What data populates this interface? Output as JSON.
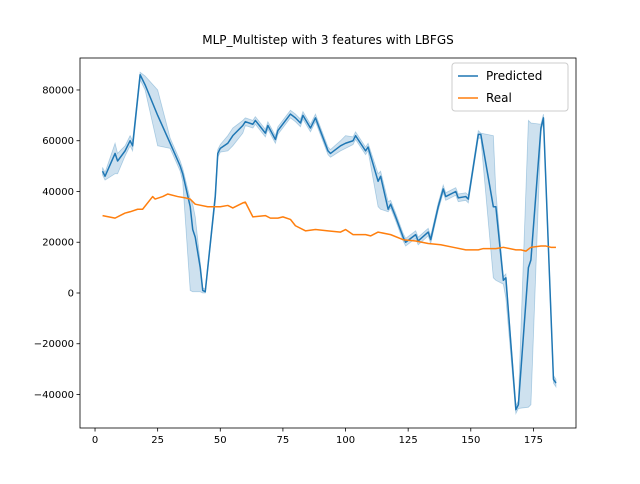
{
  "chart_data": {
    "type": "line",
    "title": "MLP_Multistep with 3 features with LBFGS",
    "xlim": [
      -6,
      192
    ],
    "xticks": [
      0,
      25,
      50,
      75,
      100,
      125,
      150,
      175
    ],
    "ylim": [
      -53200,
      92600
    ],
    "yticks": [
      {
        "value": -40000,
        "label": "−40000"
      },
      {
        "value": -20000,
        "label": "−20000"
      },
      0,
      20000,
      40000,
      60000,
      80000
    ],
    "legend": "upper right",
    "series": [
      {
        "name": "Predicted",
        "color": "#1f77b4",
        "x": [
          3,
          4,
          8,
          9,
          12,
          14,
          15,
          18,
          20,
          25,
          30,
          34,
          35,
          38,
          39,
          40,
          42,
          43,
          44,
          48,
          49,
          50,
          53,
          55,
          59,
          60,
          63,
          64,
          66,
          68,
          69,
          72,
          73,
          78,
          80,
          82,
          83,
          86,
          88,
          93,
          94,
          98,
          100,
          103,
          104,
          108,
          109,
          113,
          114,
          117,
          118,
          120,
          123,
          124,
          128,
          129,
          133,
          134,
          137,
          139,
          140,
          144,
          145,
          148,
          149,
          153,
          154,
          159,
          160,
          163,
          164,
          168,
          169,
          173,
          174,
          178,
          179,
          183,
          184
        ],
        "values": [
          48000,
          46000,
          55000,
          52000,
          56000,
          60000,
          58000,
          86000,
          82000,
          70000,
          59000,
          50000,
          47000,
          34000,
          25000,
          22000,
          10000,
          1000,
          500,
          38000,
          55000,
          57000,
          59000,
          62000,
          66000,
          67500,
          66500,
          68000,
          65500,
          63000,
          66000,
          60500,
          64000,
          70500,
          69000,
          67000,
          70000,
          65000,
          69000,
          56000,
          55000,
          58000,
          59000,
          60000,
          62000,
          56000,
          57500,
          44000,
          46000,
          33000,
          35000,
          30000,
          22000,
          20000,
          23000,
          20500,
          24000,
          21000,
          34000,
          41000,
          38000,
          40000,
          37500,
          38000,
          37000,
          62500,
          62500,
          34000,
          34000,
          5000,
          6000,
          -46000,
          -44000,
          10000,
          13000,
          65000,
          69000,
          -34000,
          -35500
        ],
        "band": {
          "lower": [
            46500,
            44500,
            47000,
            47000,
            54000,
            58000,
            56000,
            84000,
            80000,
            58000,
            57000,
            48000,
            44000,
            1000,
            500,
            500,
            500,
            0,
            0,
            36000,
            53500,
            55500,
            56000,
            58000,
            63000,
            66000,
            65000,
            66500,
            64000,
            61500,
            64500,
            59000,
            62500,
            69000,
            67500,
            65500,
            68500,
            63500,
            67500,
            54500,
            53500,
            56000,
            57000,
            58500,
            60500,
            54500,
            56000,
            34000,
            33000,
            32000,
            33500,
            28500,
            20500,
            18500,
            21500,
            19000,
            22500,
            19500,
            32500,
            39500,
            36500,
            38500,
            36000,
            36500,
            35500,
            61000,
            61000,
            6000,
            5000,
            3500,
            -2000,
            -47500,
            -45500,
            -45000,
            -44000,
            63500,
            67500,
            -35500,
            -37000
          ],
          "upper": [
            49500,
            47500,
            59000,
            55000,
            58000,
            62000,
            60000,
            87000,
            85500,
            80000,
            61000,
            52000,
            49000,
            37000,
            35000,
            30000,
            12000,
            2000,
            1500,
            40000,
            56500,
            58500,
            62000,
            65000,
            68000,
            69000,
            68000,
            69500,
            67000,
            64500,
            67500,
            62000,
            65500,
            72000,
            70500,
            68500,
            71500,
            66500,
            70500,
            57500,
            56500,
            60000,
            62000,
            61500,
            63500,
            57500,
            59000,
            47000,
            48000,
            36000,
            36500,
            31500,
            23500,
            21500,
            24500,
            22000,
            25500,
            22500,
            35500,
            42500,
            39500,
            41500,
            39000,
            39500,
            38500,
            64000,
            63000,
            62000,
            40000,
            6500,
            7500,
            -44500,
            -42500,
            68000,
            67000,
            66500,
            70500,
            -32500,
            -34000
          ]
        }
      },
      {
        "name": "Real",
        "color": "#ff7f0e",
        "x": [
          3,
          8,
          10,
          12,
          14,
          17,
          19,
          23,
          24,
          27,
          29,
          33,
          36,
          38,
          40,
          45,
          50,
          53,
          55,
          58,
          59,
          60,
          63,
          68,
          70,
          73,
          75,
          78,
          80,
          84,
          88,
          93,
          98,
          100,
          103,
          108,
          110,
          113,
          118,
          123,
          128,
          133,
          138,
          143,
          148,
          153,
          155,
          160,
          163,
          168,
          170,
          172,
          174,
          178,
          180,
          182,
          184
        ],
        "values": [
          30500,
          29500,
          30500,
          31500,
          32000,
          33000,
          33000,
          38000,
          37000,
          38000,
          39000,
          38000,
          37500,
          37000,
          35000,
          34000,
          34000,
          34500,
          33500,
          35000,
          35500,
          35800,
          30000,
          30500,
          29500,
          29500,
          30000,
          29000,
          26500,
          24500,
          25000,
          24500,
          24000,
          25000,
          23000,
          23000,
          22500,
          24000,
          23000,
          21000,
          20500,
          19500,
          19000,
          18000,
          17000,
          17000,
          17500,
          17500,
          18000,
          17000,
          17000,
          16500,
          18000,
          18500,
          18500,
          18000,
          18000
        ]
      }
    ]
  }
}
